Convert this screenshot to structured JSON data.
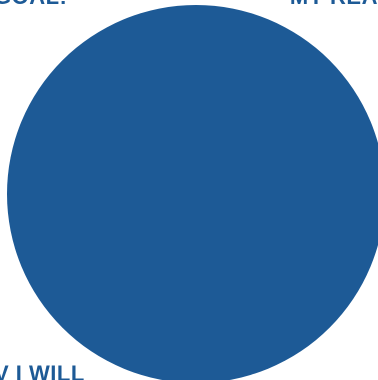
{
  "colors": {
    "circle": "#1d5a96",
    "text": "#1d5a96",
    "background": "#ffffff"
  },
  "labels": {
    "top_left": "GOAL:",
    "top_right": "MY REA",
    "bottom_left": "V I WILL"
  }
}
